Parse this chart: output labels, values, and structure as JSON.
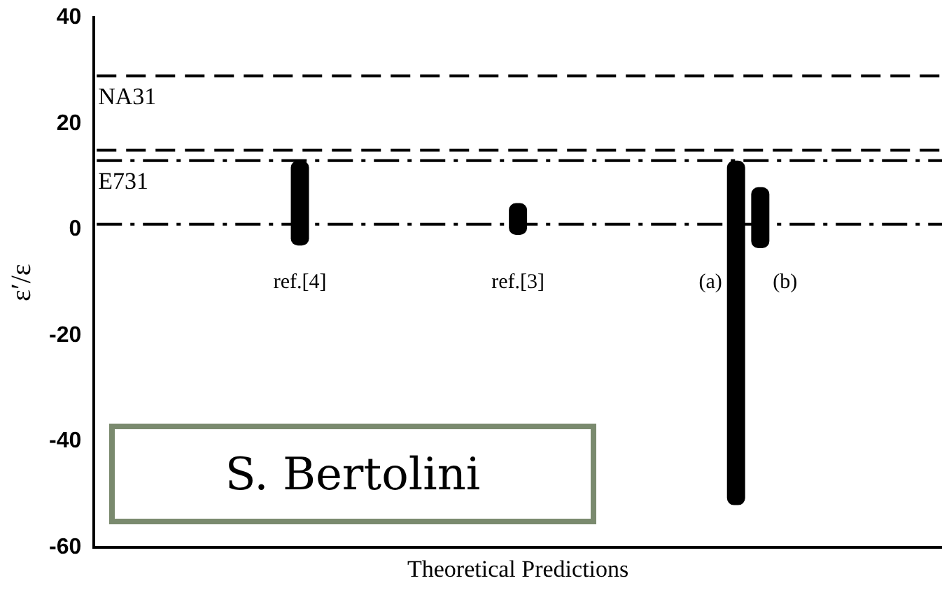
{
  "chart_data": {
    "type": "bar",
    "xlabel": "Theoretical Predictions",
    "ylabel": "ε′/ε",
    "categories": [
      null,
      null,
      null,
      null,
      null,
      null,
      null,
      null,
      "ref.[4]",
      null,
      null,
      null,
      null,
      null,
      null,
      null,
      null,
      "ref.[3]",
      null,
      null,
      null,
      null,
      null,
      null,
      null,
      null,
      "(a)",
      "(b)",
      null,
      null,
      null,
      null,
      null,
      null,
      null
    ],
    "values": [
      null,
      null,
      null,
      null,
      null,
      null,
      null,
      null,
      16,
      null,
      null,
      null,
      null,
      null,
      null,
      null,
      null,
      6,
      null,
      null,
      null,
      null,
      null,
      null,
      null,
      null,
      65,
      11.5,
      null,
      null,
      null,
      null,
      null,
      null,
      null
    ],
    "base": [
      null,
      null,
      null,
      null,
      null,
      null,
      null,
      null,
      -3,
      null,
      null,
      null,
      null,
      null,
      null,
      null,
      null,
      -1,
      null,
      null,
      null,
      null,
      null,
      null,
      null,
      null,
      -52,
      -3.5,
      null,
      null,
      null,
      null,
      null,
      null,
      null
    ],
    "color": "#000000",
    "ylim": [
      -60,
      40
    ],
    "yticks": [
      -60,
      -40,
      -20,
      0,
      20,
      40
    ],
    "grid": false,
    "legend": false,
    "ref_lines": [
      {
        "axis": "y",
        "value": 29,
        "label": "NA31",
        "line_style": "dashed",
        "color": "#000000"
      },
      {
        "axis": "y",
        "value": 15,
        "line_style": "dashed",
        "color": "#000000"
      },
      {
        "axis": "y",
        "value": 13,
        "label": "E731",
        "line_style": "dashdot",
        "color": "#000000"
      },
      {
        "axis": "y",
        "value": 1,
        "line_style": "dashdot",
        "color": "#000000"
      }
    ],
    "annotations": [
      "S. Bertolini"
    ]
  }
}
